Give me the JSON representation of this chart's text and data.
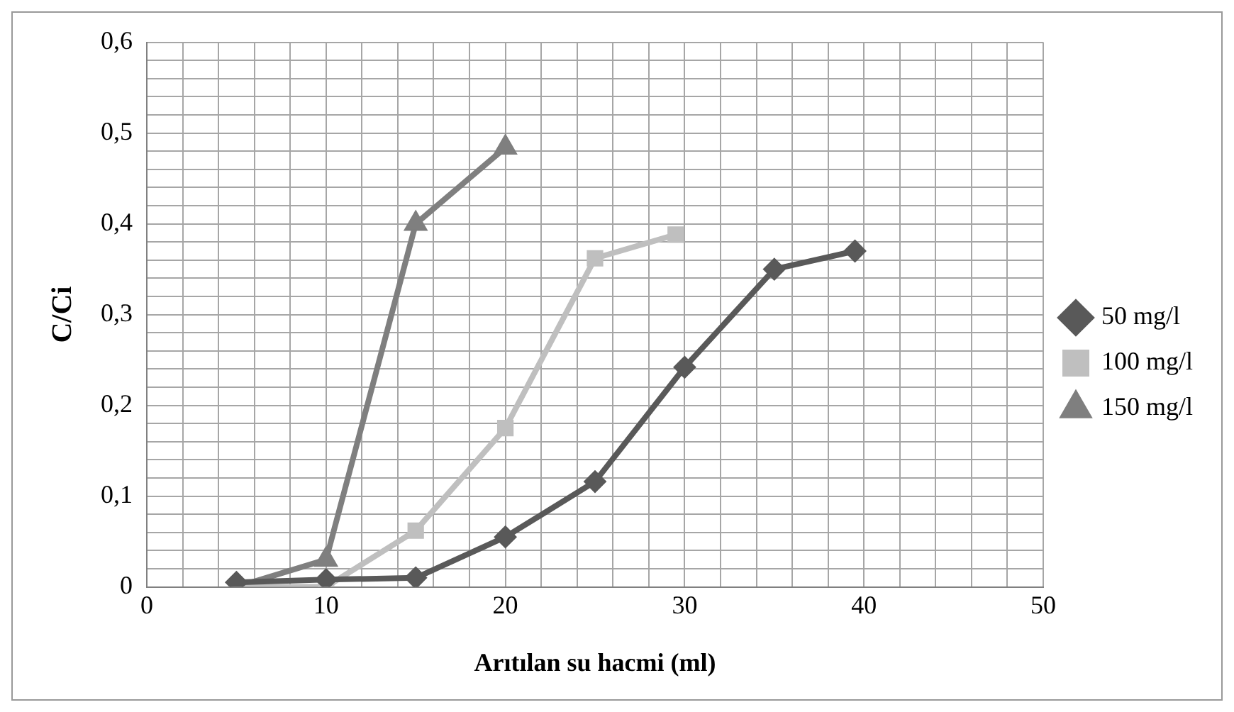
{
  "chart_data": {
    "type": "line",
    "xlabel": "Arıtılan su hacmi (ml)",
    "ylabel": "C/Ci",
    "xlim": [
      0,
      50
    ],
    "ylim": [
      0,
      0.6
    ],
    "xticks": [
      0,
      {
        "value": 2,
        "label": null
      },
      {
        "value": 4,
        "label": null
      },
      {
        "value": 6,
        "label": null
      },
      {
        "value": 8,
        "label": null
      },
      10,
      {
        "value": 12,
        "label": null
      },
      {
        "value": 14,
        "label": null
      },
      {
        "value": 16,
        "label": null
      },
      {
        "value": 18,
        "label": null
      },
      20,
      {
        "value": 22,
        "label": null
      },
      {
        "value": 24,
        "label": null
      },
      {
        "value": 26,
        "label": null
      },
      {
        "value": 28,
        "label": null
      },
      30,
      {
        "value": 32,
        "label": null
      },
      {
        "value": 34,
        "label": null
      },
      {
        "value": 36,
        "label": null
      },
      {
        "value": 38,
        "label": null
      },
      40,
      {
        "value": 42,
        "label": null
      },
      {
        "value": 44,
        "label": null
      },
      {
        "value": 46,
        "label": null
      },
      {
        "value": 48,
        "label": null
      },
      50
    ],
    "yticks": [
      0,
      {
        "value": 0.02,
        "label": null
      },
      {
        "value": 0.04,
        "label": null
      },
      {
        "value": 0.06,
        "label": null
      },
      {
        "value": 0.08,
        "label": null
      },
      {
        "value": 0.1,
        "label": "0,1"
      },
      {
        "value": 0.12,
        "label": null
      },
      {
        "value": 0.14,
        "label": null
      },
      {
        "value": 0.16,
        "label": null
      },
      {
        "value": 0.18,
        "label": null
      },
      {
        "value": 0.2,
        "label": "0,2"
      },
      {
        "value": 0.22,
        "label": null
      },
      {
        "value": 0.24,
        "label": null
      },
      {
        "value": 0.26,
        "label": null
      },
      {
        "value": 0.28,
        "label": null
      },
      {
        "value": 0.3,
        "label": "0,3"
      },
      {
        "value": 0.32,
        "label": null
      },
      {
        "value": 0.34,
        "label": null
      },
      {
        "value": 0.36,
        "label": null
      },
      {
        "value": 0.38,
        "label": null
      },
      {
        "value": 0.4,
        "label": "0,4"
      },
      {
        "value": 0.42,
        "label": null
      },
      {
        "value": 0.44,
        "label": null
      },
      {
        "value": 0.46,
        "label": null
      },
      {
        "value": 0.48,
        "label": null
      },
      {
        "value": 0.5,
        "label": "0,5"
      },
      {
        "value": 0.52,
        "label": null
      },
      {
        "value": 0.54,
        "label": null
      },
      {
        "value": 0.56,
        "label": null
      },
      {
        "value": 0.58,
        "label": null
      },
      {
        "value": 0.6,
        "label": "0,6"
      }
    ],
    "grid": true,
    "legend": "right",
    "line_style": "solid",
    "series": [
      {
        "name": "50 mg/l",
        "color": "#595959",
        "marker": "diamond",
        "x": [
          5,
          10,
          15,
          20,
          25,
          30,
          35,
          39.5
        ],
        "values": [
          0.005,
          0.008,
          0.01,
          0.055,
          0.116,
          0.242,
          0.35,
          0.37
        ]
      },
      {
        "name": "100 mg/l",
        "color": "#bfbfbf",
        "marker": "square",
        "x": [
          5,
          10,
          15,
          20,
          25,
          29.5
        ],
        "values": [
          0,
          0,
          0.062,
          0.175,
          0.362,
          0.388
        ]
      },
      {
        "name": "150 mg/l",
        "color": "#7f7f7f",
        "marker": "triangle",
        "x": [
          5,
          10,
          15,
          20
        ],
        "values": [
          0,
          0.03,
          0.4,
          0.484
        ]
      }
    ]
  }
}
